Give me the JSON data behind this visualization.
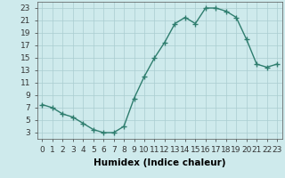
{
  "xlabel": "Humidex (Indice chaleur)",
  "x": [
    0,
    1,
    2,
    3,
    4,
    5,
    6,
    7,
    8,
    9,
    10,
    11,
    12,
    13,
    14,
    15,
    16,
    17,
    18,
    19,
    20,
    21,
    22,
    23
  ],
  "y": [
    7.5,
    7.0,
    6.0,
    5.5,
    4.5,
    3.5,
    3.0,
    3.0,
    4.0,
    8.5,
    12.0,
    15.0,
    17.5,
    20.5,
    21.5,
    20.5,
    23.0,
    23.0,
    22.5,
    21.5,
    18.0,
    14.0,
    13.5,
    14.0
  ],
  "line_color": "#2e7d6e",
  "marker": "+",
  "marker_size": 4,
  "marker_lw": 1.0,
  "line_width": 1.0,
  "bg_color": "#ceeaec",
  "grid_color": "#aacdd0",
  "xlim": [
    -0.5,
    23.5
  ],
  "ylim": [
    2,
    24
  ],
  "yticks": [
    3,
    5,
    7,
    9,
    11,
    13,
    15,
    17,
    19,
    21,
    23
  ],
  "xtick_labels": [
    "0",
    "1",
    "2",
    "3",
    "4",
    "5",
    "6",
    "7",
    "8",
    "9",
    "10",
    "11",
    "12",
    "13",
    "14",
    "15",
    "16",
    "17",
    "18",
    "19",
    "20",
    "21",
    "22",
    "23"
  ],
  "xlabel_fontsize": 7.5,
  "tick_fontsize": 6.5
}
